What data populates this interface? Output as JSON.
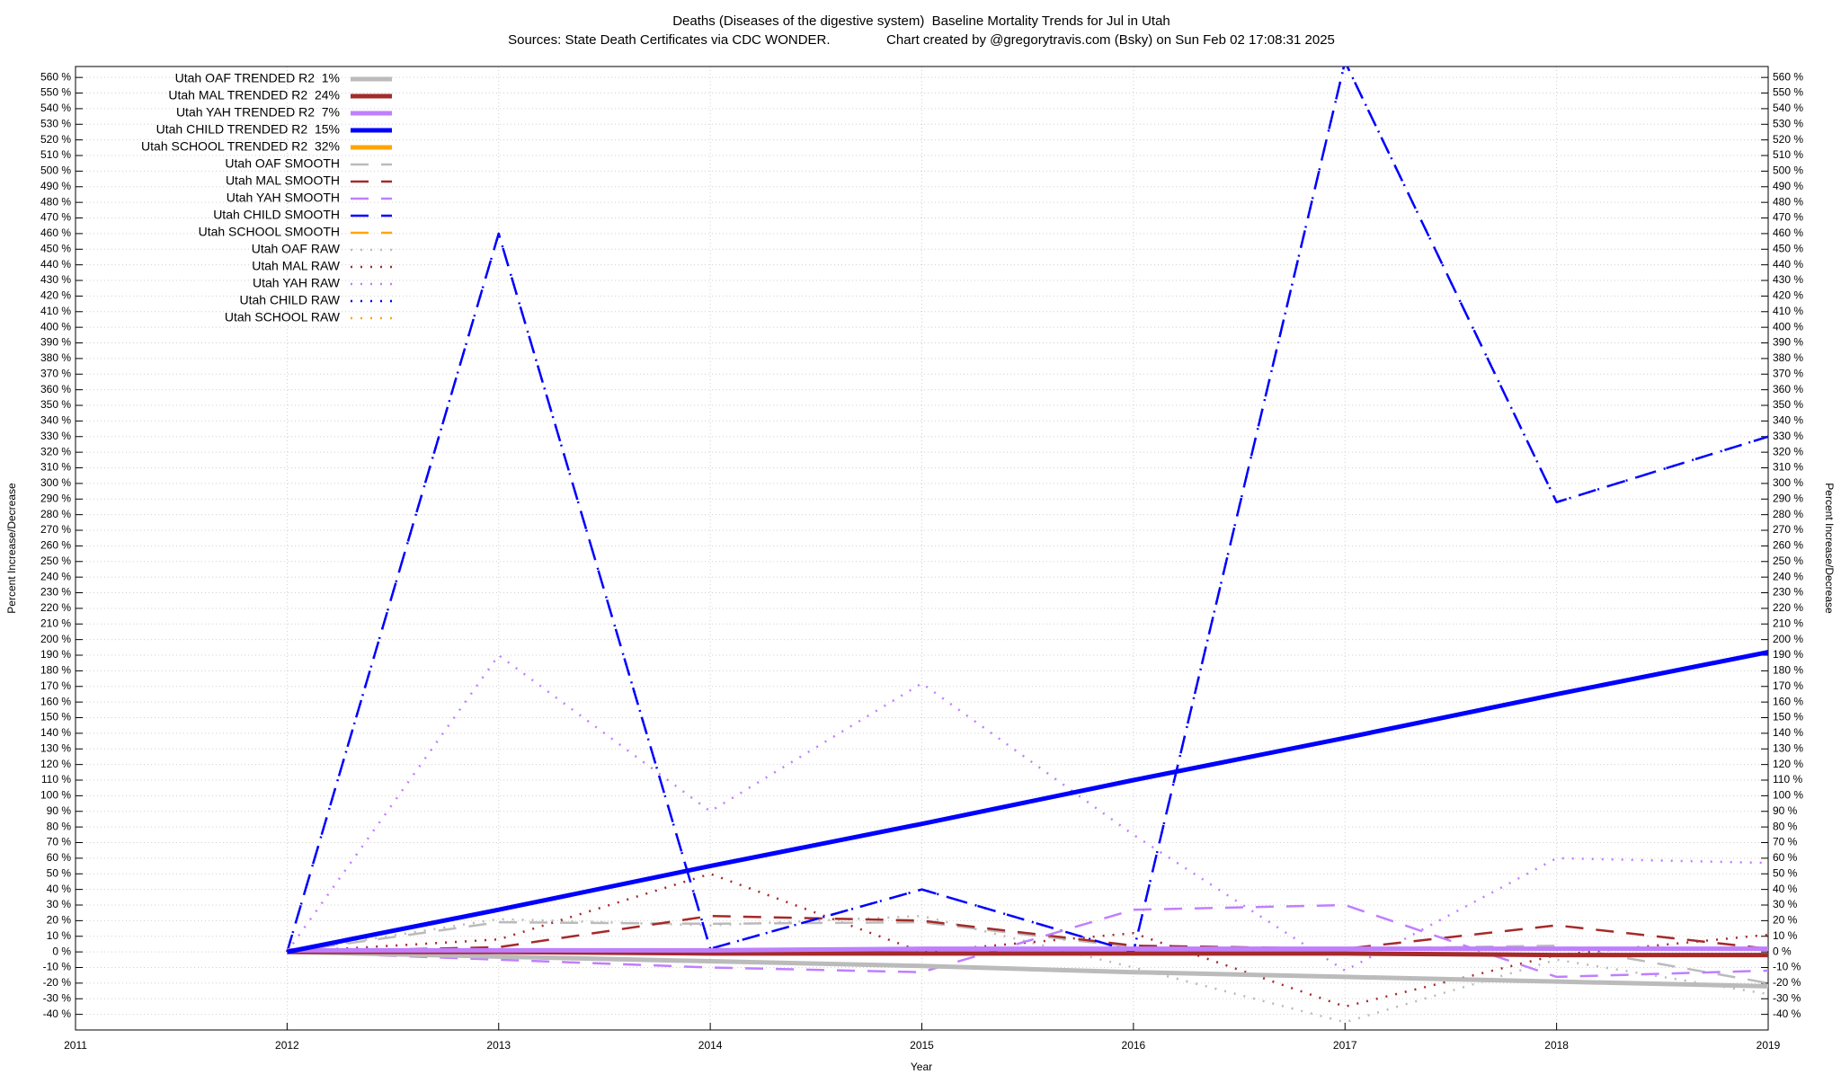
{
  "chart_data": {
    "type": "line",
    "title": "Deaths (Diseases of the digestive system)  Baseline Mortality Trends for Jul in Utah",
    "subtitle": "Sources: State Death Certificates via CDC WONDER.               Chart created by @gregorytravis.com (Bsky) on Sun Feb 02 17:08:31 2025",
    "x_label": "Year",
    "y_label": "Percent Increase/Decrease",
    "y2_label": "Percent Increase/Decrease",
    "x": [
      2012,
      2013,
      2014,
      2015,
      2016,
      2017,
      2018,
      2019
    ],
    "xlim": [
      2011,
      2019
    ],
    "xticks": [
      2011,
      2012,
      2013,
      2014,
      2015,
      2016,
      2017,
      2018,
      2019
    ],
    "ylim": [
      -50,
      567
    ],
    "yticks": [
      {
        "value": -40,
        "label": "-40 %"
      },
      {
        "value": -30,
        "label": "-30 %"
      },
      {
        "value": -20,
        "label": "-20 %"
      },
      {
        "value": -10,
        "label": "-10 %"
      },
      {
        "value": 0,
        "label": "0 %"
      },
      {
        "value": 10,
        "label": "10 %"
      },
      {
        "value": 20,
        "label": "20 %"
      },
      {
        "value": 30,
        "label": "30 %"
      },
      {
        "value": 40,
        "label": "40 %"
      },
      {
        "value": 50,
        "label": "50 %"
      },
      {
        "value": 60,
        "label": "60 %"
      },
      {
        "value": 70,
        "label": "70 %"
      },
      {
        "value": 80,
        "label": "80 %"
      },
      {
        "value": 90,
        "label": "90 %"
      },
      {
        "value": 100,
        "label": "100 %"
      },
      {
        "value": 110,
        "label": "110 %"
      },
      {
        "value": 120,
        "label": "120 %"
      },
      {
        "value": 130,
        "label": "130 %"
      },
      {
        "value": 140,
        "label": "140 %"
      },
      {
        "value": 150,
        "label": "150 %"
      },
      {
        "value": 160,
        "label": "160 %"
      },
      {
        "value": 170,
        "label": "170 %"
      },
      {
        "value": 180,
        "label": "180 %"
      },
      {
        "value": 190,
        "label": "190 %"
      },
      {
        "value": 200,
        "label": "200 %"
      },
      {
        "value": 210,
        "label": "210 %"
      },
      {
        "value": 220,
        "label": "220 %"
      },
      {
        "value": 230,
        "label": "230 %"
      },
      {
        "value": 240,
        "label": "240 %"
      },
      {
        "value": 250,
        "label": "250 %"
      },
      {
        "value": 260,
        "label": "260 %"
      },
      {
        "value": 270,
        "label": "270 %"
      },
      {
        "value": 280,
        "label": "280 %"
      },
      {
        "value": 290,
        "label": "290 %"
      },
      {
        "value": 300,
        "label": "300 %"
      },
      {
        "value": 310,
        "label": "310 %"
      },
      {
        "value": 320,
        "label": "320 %"
      },
      {
        "value": 330,
        "label": "330 %"
      },
      {
        "value": 340,
        "label": "340 %"
      },
      {
        "value": 350,
        "label": "350 %"
      },
      {
        "value": 360,
        "label": "360 %"
      },
      {
        "value": 370,
        "label": "370 %"
      },
      {
        "value": 380,
        "label": "380 %"
      },
      {
        "value": 390,
        "label": "390 %"
      },
      {
        "value": 400,
        "label": "400 %"
      },
      {
        "value": 410,
        "label": "410 %"
      },
      {
        "value": 420,
        "label": "420 %"
      },
      {
        "value": 430,
        "label": "430 %"
      },
      {
        "value": 440,
        "label": "440 %"
      },
      {
        "value": 450,
        "label": "450 %"
      },
      {
        "value": 460,
        "label": "460 %"
      },
      {
        "value": 470,
        "label": "470 %"
      },
      {
        "value": 480,
        "label": "480 %"
      },
      {
        "value": 490,
        "label": "490 %"
      },
      {
        "value": 500,
        "label": "500 %"
      },
      {
        "value": 510,
        "label": "510 %"
      },
      {
        "value": 520,
        "label": "520 %"
      },
      {
        "value": 530,
        "label": "530 %"
      },
      {
        "value": 540,
        "label": "540 %"
      },
      {
        "value": 550,
        "label": "550 %"
      },
      {
        "value": 560,
        "label": "560 %"
      }
    ],
    "grid": true,
    "legend": "top-left",
    "series": [
      {
        "name": "Utah OAF TRENDED R2  1%",
        "color": "#bbbbbb",
        "style": "solid",
        "values": [
          0,
          -3,
          -6,
          -9,
          -13,
          -16,
          -19,
          -22
        ]
      },
      {
        "name": "Utah MAL TRENDED R2  24%",
        "color": "#a52a2a",
        "style": "solid",
        "values": [
          0,
          0,
          -1,
          -1,
          -1,
          -1,
          -2,
          -2
        ]
      },
      {
        "name": "Utah YAH TRENDED R2  7%",
        "color": "#bf7fff",
        "style": "solid",
        "values": [
          1,
          1,
          1,
          2,
          2,
          2,
          2,
          2
        ]
      },
      {
        "name": "Utah CHILD TRENDED R2  15%",
        "color": "#0000ff",
        "style": "solid",
        "values": [
          0,
          27,
          55,
          82,
          110,
          137,
          165,
          192
        ]
      },
      {
        "name": "Utah SCHOOL TRENDED R2  32%",
        "color": "#ffa500",
        "style": "solid",
        "values": [
          null,
          null,
          null,
          null,
          null,
          null,
          null,
          null
        ]
      },
      {
        "name": "Utah OAF SMOOTH",
        "color": "#bbbbbb",
        "style": "dashed",
        "values": [
          0,
          19,
          18,
          19,
          3,
          2,
          4,
          -20
        ]
      },
      {
        "name": "Utah MAL SMOOTH",
        "color": "#a52a2a",
        "style": "dashed",
        "values": [
          0,
          3,
          23,
          20,
          4,
          2,
          17,
          2
        ]
      },
      {
        "name": "Utah YAH SMOOTH",
        "color": "#bf7fff",
        "style": "dashed",
        "values": [
          0,
          -5,
          -10,
          -13,
          27,
          30,
          -16,
          -12
        ]
      },
      {
        "name": "Utah CHILD SMOOTH",
        "color": "#0000ff",
        "style": "dashed",
        "values": [
          0,
          460,
          2,
          40,
          0,
          570,
          288,
          330
        ]
      },
      {
        "name": "Utah SCHOOL SMOOTH",
        "color": "#ffa500",
        "style": "dashed",
        "values": [
          null,
          null,
          null,
          null,
          null,
          null,
          null,
          null
        ]
      },
      {
        "name": "Utah OAF RAW",
        "color": "#bbbbbb",
        "style": "dotted",
        "values": [
          0,
          21,
          17,
          23,
          -10,
          -45,
          -5,
          -27
        ]
      },
      {
        "name": "Utah MAL RAW",
        "color": "#a52a2a",
        "style": "dotted",
        "values": [
          0,
          8,
          50,
          0,
          12,
          -35,
          -2,
          11
        ]
      },
      {
        "name": "Utah YAH RAW",
        "color": "#bf7fff",
        "style": "dotted",
        "values": [
          0,
          190,
          90,
          172,
          75,
          -12,
          60,
          57
        ]
      },
      {
        "name": "Utah CHILD RAW",
        "color": "#0000ff",
        "style": "dotted",
        "values": [
          0,
          460,
          2,
          40,
          0,
          570,
          288,
          330
        ]
      },
      {
        "name": "Utah SCHOOL RAW",
        "color": "#ffa500",
        "style": "dotted",
        "values": [
          null,
          null,
          null,
          null,
          null,
          null,
          null,
          null
        ]
      }
    ]
  }
}
